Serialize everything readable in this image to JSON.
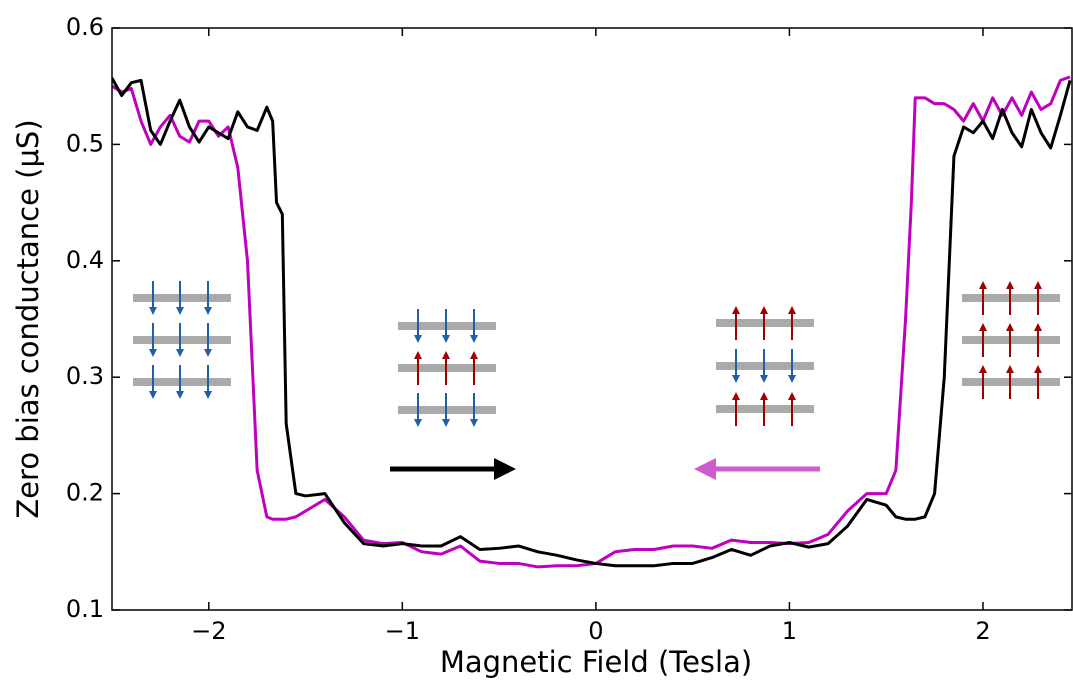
{
  "chart_data": {
    "type": "line",
    "xlabel": "Magnetic Field (Tesla)",
    "ylabel": "Zero bias conductance (μS)",
    "x": [
      -2.5,
      -2.45,
      -2.4,
      -2.35,
      -2.3,
      -2.25,
      -2.2,
      -2.15,
      -2.1,
      -2.05,
      -2.0,
      -1.95,
      -1.9,
      -1.85,
      -1.8,
      -1.75,
      -1.7,
      -1.67,
      -1.65,
      -1.62,
      -1.6,
      -1.55,
      -1.5,
      -1.4,
      -1.3,
      -1.2,
      -1.1,
      -1.0,
      -0.9,
      -0.8,
      -0.7,
      -0.6,
      -0.5,
      -0.4,
      -0.3,
      -0.2,
      -0.1,
      0,
      0.1,
      0.2,
      0.3,
      0.4,
      0.5,
      0.6,
      0.7,
      0.8,
      0.9,
      1.0,
      1.1,
      1.2,
      1.3,
      1.4,
      1.5,
      1.55,
      1.6,
      1.63,
      1.65,
      1.7,
      1.75,
      1.8,
      1.85,
      1.9,
      1.95,
      2.0,
      2.05,
      2.1,
      2.15,
      2.2,
      2.25,
      2.3,
      2.35,
      2.4,
      2.45
    ],
    "series": [
      {
        "color": "#bf00bf",
        "values": [
          0.55,
          0.545,
          0.548,
          0.52,
          0.5,
          0.515,
          0.525,
          0.507,
          0.502,
          0.52,
          0.52,
          0.507,
          0.515,
          0.48,
          0.4,
          0.22,
          0.18,
          0.178,
          0.178,
          0.178,
          0.178,
          0.18,
          0.185,
          0.195,
          0.18,
          0.16,
          0.157,
          0.158,
          0.15,
          0.148,
          0.155,
          0.142,
          0.14,
          0.14,
          0.137,
          0.138,
          0.138,
          0.14,
          0.15,
          0.152,
          0.152,
          0.155,
          0.155,
          0.153,
          0.16,
          0.158,
          0.158,
          0.157,
          0.158,
          0.165,
          0.185,
          0.2,
          0.2,
          0.22,
          0.35,
          0.45,
          0.54,
          0.54,
          0.535,
          0.535,
          0.53,
          0.52,
          0.535,
          0.52,
          0.54,
          0.525,
          0.54,
          0.525,
          0.545,
          0.53,
          0.535,
          0.555,
          0.558
        ]
      },
      {
        "color": "#000000",
        "values": [
          0.557,
          0.542,
          0.553,
          0.555,
          0.512,
          0.5,
          0.52,
          0.538,
          0.515,
          0.502,
          0.515,
          0.51,
          0.505,
          0.528,
          0.515,
          0.512,
          0.532,
          0.52,
          0.45,
          0.44,
          0.26,
          0.2,
          0.198,
          0.2,
          0.175,
          0.157,
          0.155,
          0.157,
          0.155,
          0.155,
          0.163,
          0.152,
          0.153,
          0.155,
          0.15,
          0.147,
          0.143,
          0.14,
          0.138,
          0.138,
          0.138,
          0.14,
          0.14,
          0.145,
          0.152,
          0.147,
          0.155,
          0.158,
          0.154,
          0.157,
          0.172,
          0.195,
          0.19,
          0.18,
          0.178,
          0.178,
          0.178,
          0.18,
          0.2,
          0.3,
          0.49,
          0.515,
          0.51,
          0.52,
          0.505,
          0.53,
          0.51,
          0.498,
          0.53,
          0.51,
          0.497,
          0.525,
          0.555
        ]
      }
    ],
    "xlim": [
      -2.5,
      2.46
    ],
    "ylim": [
      0.1,
      0.6
    ],
    "xticks": [
      {
        "value": -2,
        "label": "−2"
      },
      {
        "value": -1,
        "label": "−1"
      },
      0,
      1,
      2
    ],
    "yticks": [
      0.1,
      0.2,
      0.3,
      0.4,
      0.5,
      0.6
    ]
  }
}
